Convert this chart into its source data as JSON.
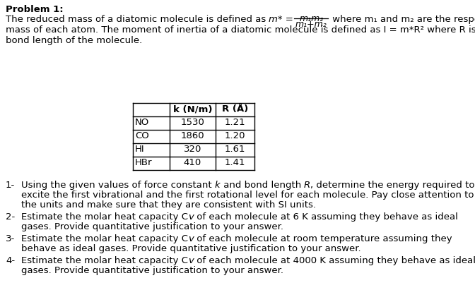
{
  "bg_color": "#ffffff",
  "title": "Problem 1:",
  "table_headers": [
    "",
    "k (N/m)",
    "R (Å)"
  ],
  "table_rows": [
    [
      "NO",
      "1530",
      "1.21"
    ],
    [
      "CO",
      "1860",
      "1.20"
    ],
    [
      "HI",
      "320",
      "1.61"
    ],
    [
      "HBr",
      "410",
      "1.41"
    ]
  ],
  "items": [
    [
      "1-",
      "Using the given values of force constant ",
      "k",
      " and bond length ",
      "R",
      ", determine the energy required to\n     excite the first vibrational and the first rotational level for each molecule. Pay close attention to\n     the units and make sure that they are consistent with SI units."
    ],
    [
      "2-",
      "Estimate the molar heat capacity C",
      "v",
      " of each molecule at 6 K assuming they behave as ideal\n     gases. Provide quantitative justification to your answer.",
      "",
      ""
    ],
    [
      "3-",
      "Estimate the molar heat capacity C",
      "v",
      " of each molecule at room temperature assuming they\n     behave as ideal gases. Provide quantitative justification to your answer.",
      "",
      ""
    ],
    [
      "4-",
      "Estimate the molar heat capacity C",
      "v",
      " of each molecule at 4000 K assuming they behave as ideal\n     gases. Provide quantitative justification to your answer.",
      "",
      ""
    ]
  ],
  "font_size": 9.5,
  "font_family": "DejaVu Sans"
}
